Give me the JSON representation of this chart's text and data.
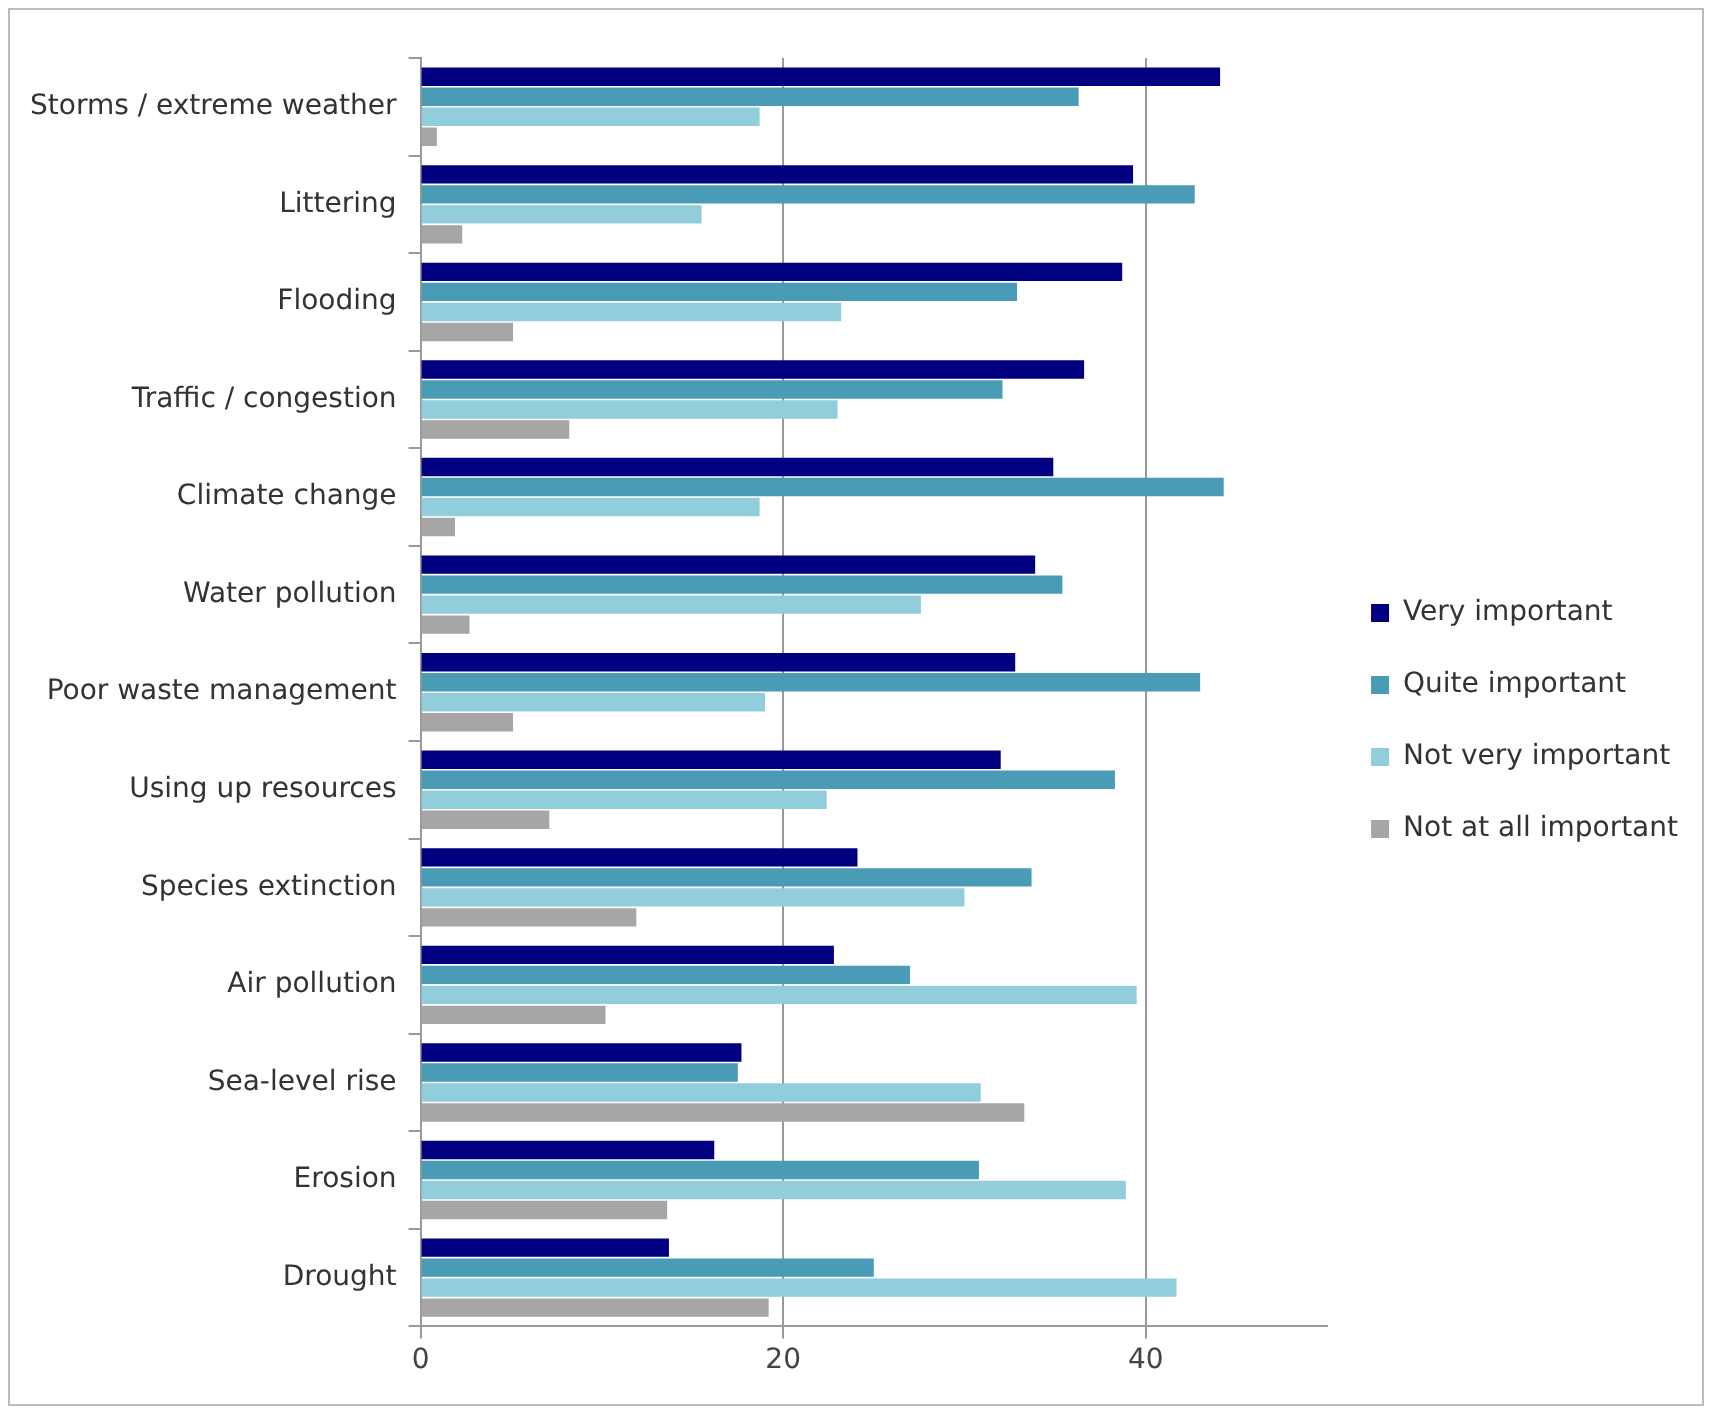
{
  "chart_data": {
    "type": "bar",
    "orientation": "horizontal",
    "categories": [
      "Storms / extreme weather",
      "Littering",
      "Flooding",
      "Traffic / congestion",
      "Climate change",
      "Water pollution",
      "Poor waste management",
      "Using up resources",
      "Species extinction",
      "Air pollution",
      "Sea-level rise",
      "Erosion",
      "Drought"
    ],
    "series": [
      {
        "name": "Very important",
        "color": "#000080",
        "values": [
          44.1,
          39.3,
          38.7,
          36.6,
          34.9,
          33.9,
          32.8,
          32.0,
          24.1,
          22.8,
          17.7,
          16.2,
          13.7
        ]
      },
      {
        "name": "Quite important",
        "color": "#4a9bb5",
        "values": [
          36.3,
          42.7,
          32.9,
          32.1,
          44.3,
          35.4,
          43.0,
          38.3,
          33.7,
          27.0,
          17.5,
          30.8,
          25.0
        ]
      },
      {
        "name": "Not very important",
        "color": "#92cddc",
        "values": [
          18.7,
          15.5,
          23.2,
          23.0,
          18.7,
          27.6,
          19.0,
          22.4,
          30.0,
          39.5,
          30.9,
          38.9,
          41.7
        ]
      },
      {
        "name": "Not at all important",
        "color": "#a6a6a6",
        "values": [
          0.9,
          2.3,
          5.1,
          8.2,
          1.9,
          2.7,
          5.1,
          7.1,
          11.9,
          10.2,
          33.3,
          13.6,
          19.2
        ]
      }
    ],
    "xlim": [
      0,
      50
    ],
    "xticks": [
      0,
      20,
      40
    ],
    "grid": "x",
    "legend": "right"
  }
}
